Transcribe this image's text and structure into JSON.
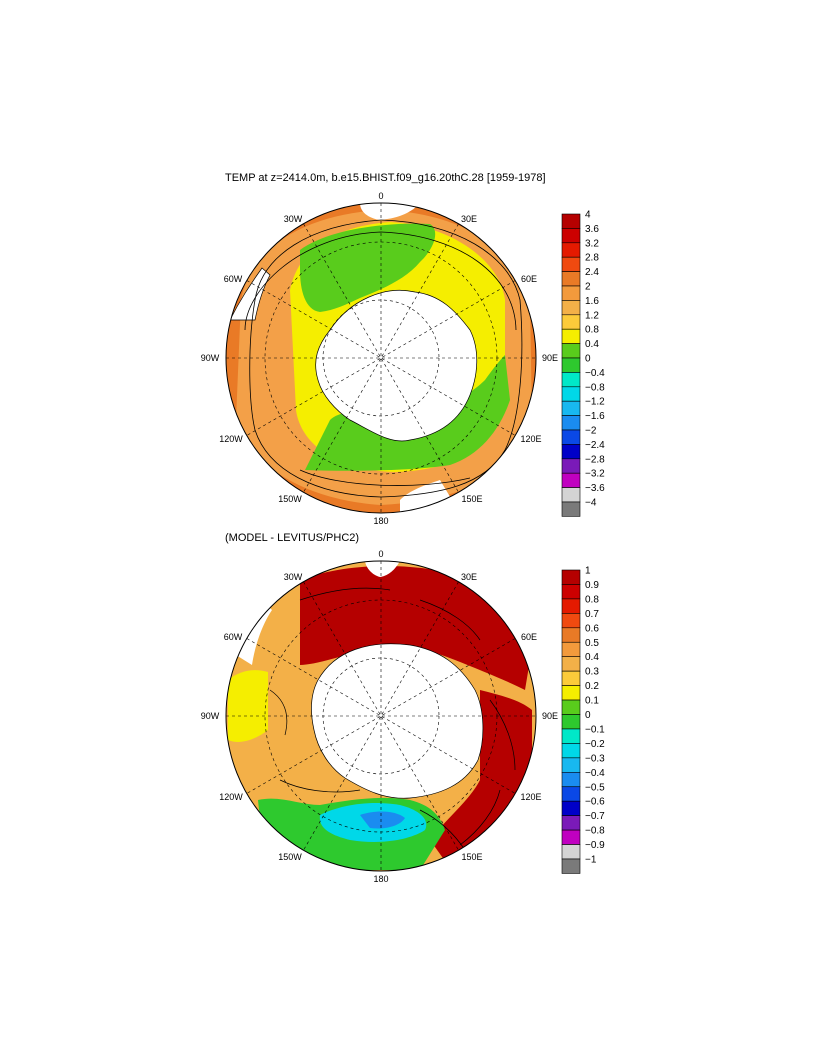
{
  "panels": {
    "top": {
      "title": "TEMP at z=2414.0m, b.e15.BHIST.f09_g16.20thC.28 [1959-1978]",
      "colorbar": {
        "labels": [
          "4",
          "3.6",
          "3.2",
          "2.8",
          "2.4",
          "2",
          "1.6",
          "1.2",
          "0.8",
          "0.4",
          "0",
          "−0.4",
          "−0.8",
          "−1.2",
          "−1.6",
          "−2",
          "−2.4",
          "−2.8",
          "−3.2",
          "−3.6",
          "−4"
        ],
        "colors": [
          "#b50000",
          "#cc0000",
          "#e41a00",
          "#f04a10",
          "#e97a26",
          "#f39a3c",
          "#f3b048",
          "#fccb3a",
          "#f5ee00",
          "#59cc1c",
          "#2ec92e",
          "#00e8c8",
          "#00d8e8",
          "#18b8f0",
          "#1a8cf0",
          "#0a48e6",
          "#0000c8",
          "#7a1ab8",
          "#c000c0",
          "#d4d4d4",
          "#7a7a7a"
        ]
      },
      "lon_labels": {
        "top": "0",
        "l30": "30W",
        "r30": "30E",
        "l60": "60W",
        "r60": "60E",
        "l90": "90W",
        "r90": "90E",
        "l120": "120W",
        "r120": "120E",
        "l150": "150W",
        "r150": "150E",
        "bottom": "180"
      }
    },
    "bottom": {
      "title": "(MODEL - LEVITUS/PHC2)",
      "colorbar": {
        "labels": [
          "1",
          "0.9",
          "0.8",
          "0.7",
          "0.6",
          "0.5",
          "0.4",
          "0.3",
          "0.2",
          "0.1",
          "0",
          "−0.1",
          "−0.2",
          "−0.3",
          "−0.4",
          "−0.5",
          "−0.6",
          "−0.7",
          "−0.8",
          "−0.9",
          "−1"
        ],
        "colors": [
          "#b50000",
          "#cc0000",
          "#e41a00",
          "#f04a10",
          "#e97a26",
          "#f39a3c",
          "#f3b048",
          "#fccb3a",
          "#f5ee00",
          "#59cc1c",
          "#2ec92e",
          "#00e8c8",
          "#00d8e8",
          "#18b8f0",
          "#1a8cf0",
          "#0a48e6",
          "#0000c8",
          "#7a1ab8",
          "#c000c0",
          "#d4d4d4",
          "#7a7a7a"
        ]
      },
      "lon_labels": {
        "top": "0",
        "l30": "30W",
        "r30": "30E",
        "l60": "60W",
        "r60": "60E",
        "l90": "90W",
        "r90": "90E",
        "l120": "120W",
        "r120": "120E",
        "l150": "150W",
        "r150": "150E",
        "bottom": "180"
      }
    }
  }
}
